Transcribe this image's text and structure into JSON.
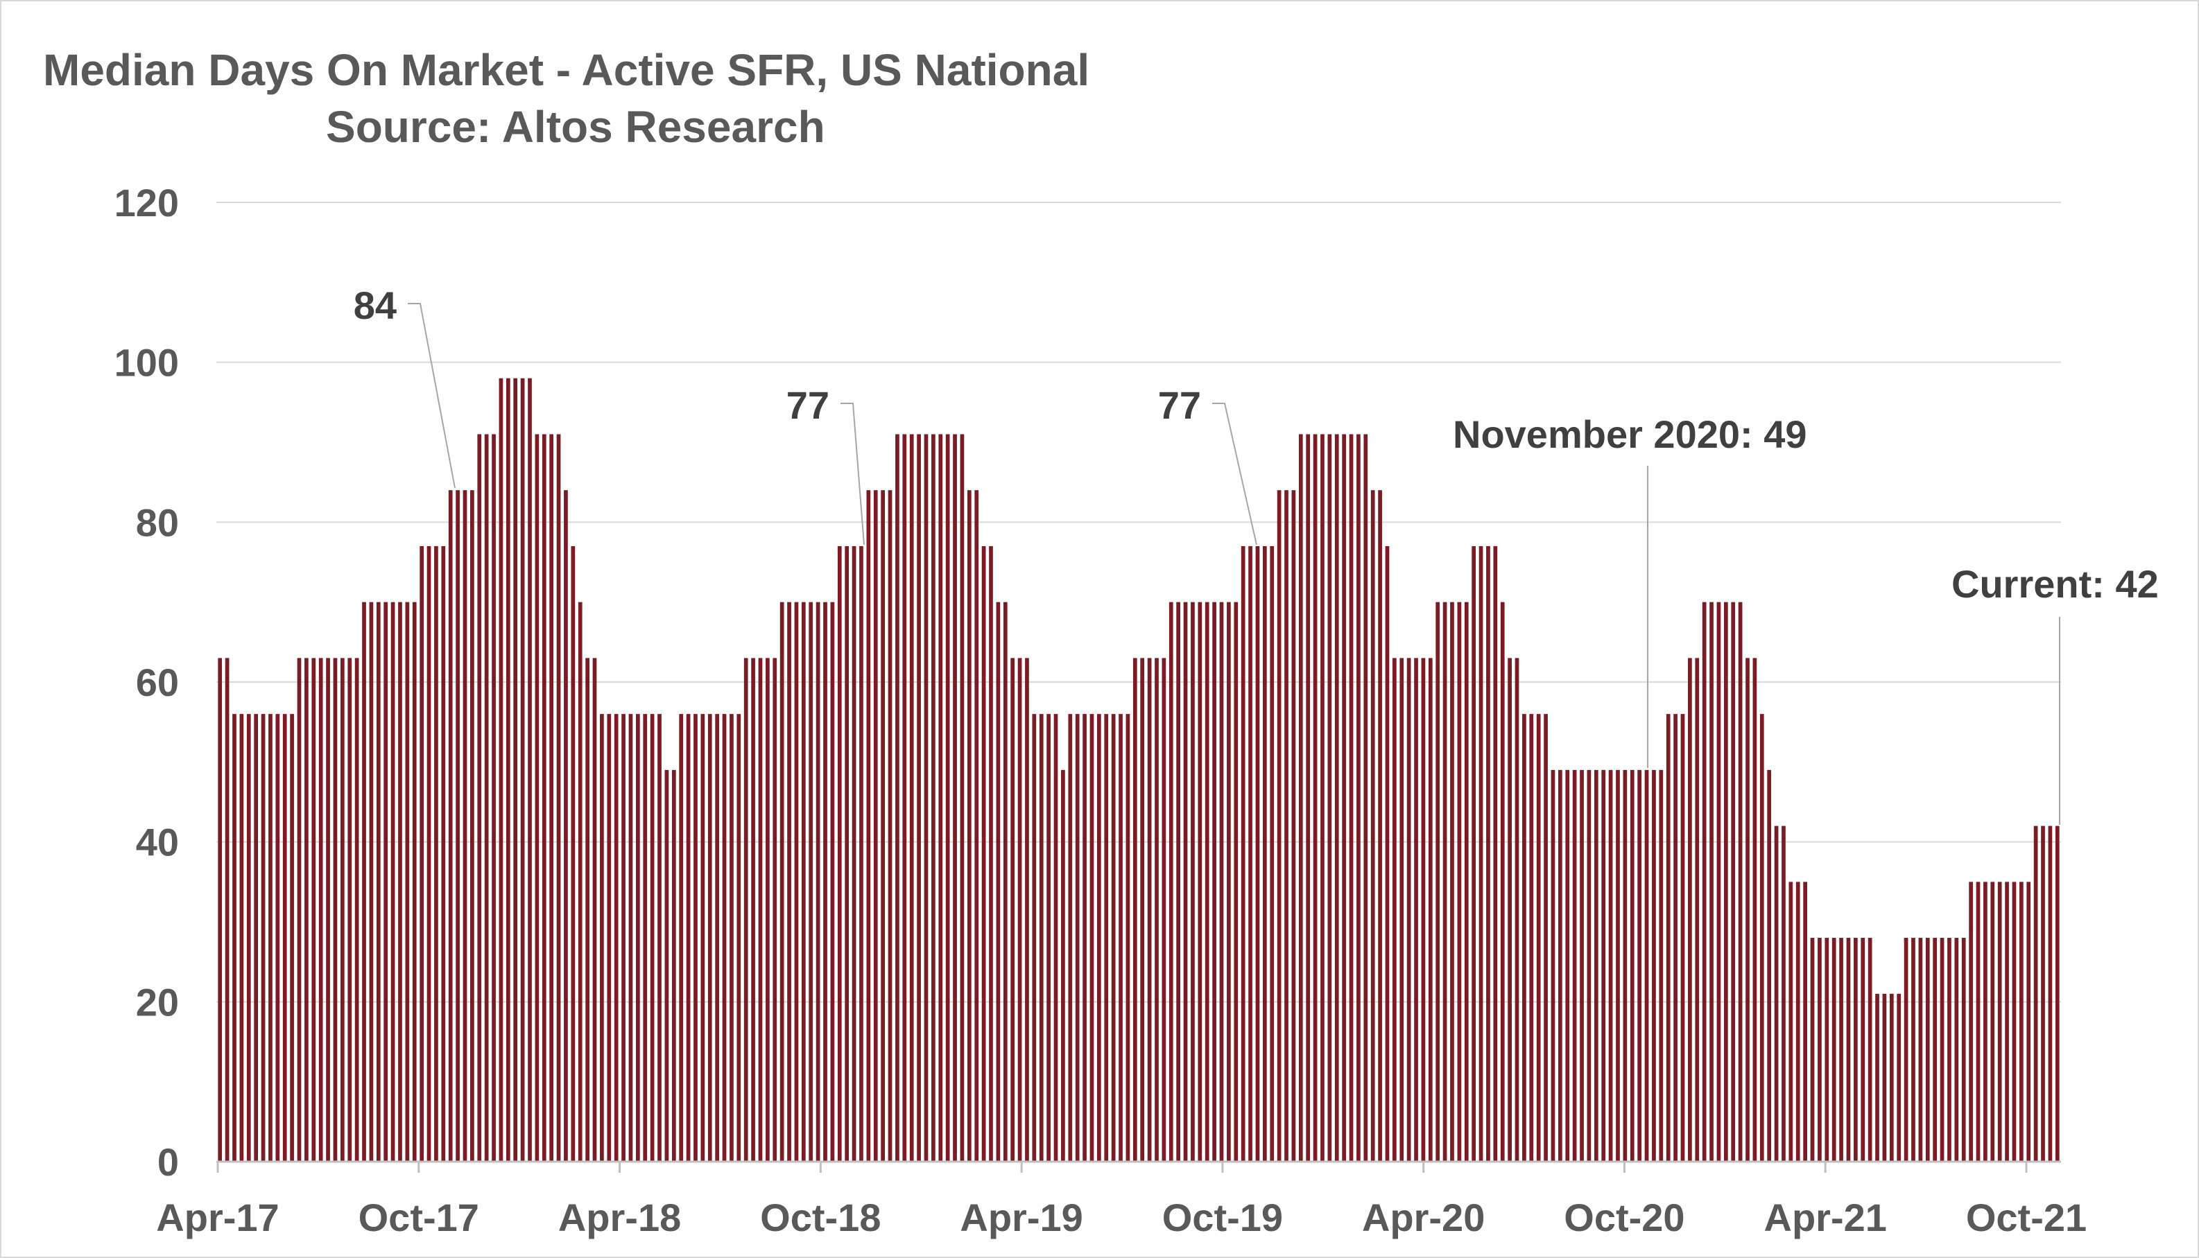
{
  "chart_data": {
    "type": "bar",
    "title": "Median Days On Market - Active SFR, US National",
    "subtitle": "Source: Altos Research",
    "xlabel": "",
    "ylabel": "",
    "ylim": [
      0,
      120
    ],
    "yticks": [
      0,
      20,
      40,
      60,
      80,
      100,
      120
    ],
    "grid": true,
    "legend": "none",
    "bar_color": "#7b1c24",
    "x_tick_labels": [
      "Apr-17",
      "Oct-17",
      "Apr-18",
      "Oct-18",
      "Apr-19",
      "Oct-19",
      "Apr-20",
      "Oct-20",
      "Apr-21",
      "Oct-21"
    ],
    "monthly_values": [
      {
        "month": "Apr-17",
        "value": 63,
        "weeks": 2
      },
      {
        "month": "May-17",
        "value": 56,
        "weeks": 5
      },
      {
        "month": "Jun-17",
        "value": 56,
        "weeks": 4
      },
      {
        "month": "Jul-17",
        "value": 63,
        "weeks": 4
      },
      {
        "month": "Aug-17",
        "value": 63,
        "weeks": 5
      },
      {
        "month": "Sep-17",
        "value": 70,
        "weeks": 4
      },
      {
        "month": "Oct-17",
        "value": 70,
        "weeks": 4
      },
      {
        "month": "Nov-17",
        "value": 77,
        "weeks": 4
      },
      {
        "month": "Dec-17",
        "value": 84,
        "weeks": 4
      },
      {
        "month": "Jan-18",
        "value": 91,
        "weeks": 3
      },
      {
        "month": "Feb-18",
        "value": 98,
        "weeks": 5
      },
      {
        "month": "Mar-18",
        "value": 91,
        "weeks": 4
      },
      {
        "month": "Apr-18",
        "value": 84,
        "weeks": 1
      },
      {
        "month": "Apr-18b",
        "value": 77,
        "weeks": 1
      },
      {
        "month": "Apr-18c",
        "value": 70,
        "weeks": 1
      },
      {
        "month": "May-18",
        "value": 63,
        "weeks": 2
      },
      {
        "month": "May-18b",
        "value": 56,
        "weeks": 9
      },
      {
        "month": "Jul-18",
        "value": 49,
        "weeks": 2
      },
      {
        "month": "Aug-18",
        "value": 56,
        "weeks": 9
      },
      {
        "month": "Sep-18",
        "value": 63,
        "weeks": 5
      },
      {
        "month": "Oct-18",
        "value": 70,
        "weeks": 8
      },
      {
        "month": "Nov-18",
        "value": 77,
        "weeks": 4
      },
      {
        "month": "Dec-18",
        "value": 84,
        "weeks": 4
      },
      {
        "month": "Jan-19",
        "value": 91,
        "weeks": 10
      },
      {
        "month": "Mar-19",
        "value": 84,
        "weeks": 2
      },
      {
        "month": "Mar-19b",
        "value": 77,
        "weeks": 2
      },
      {
        "month": "Apr-19",
        "value": 70,
        "weeks": 2
      },
      {
        "month": "Apr-19b",
        "value": 63,
        "weeks": 3
      },
      {
        "month": "May-19",
        "value": 56,
        "weeks": 4
      },
      {
        "month": "Jun-19",
        "value": 49,
        "weeks": 1
      },
      {
        "month": "Jun-19b",
        "value": 56,
        "weeks": 9
      },
      {
        "month": "Aug-19",
        "value": 63,
        "weeks": 5
      },
      {
        "month": "Sep-19",
        "value": 70,
        "weeks": 10
      },
      {
        "month": "Nov-19",
        "value": 77,
        "weeks": 5
      },
      {
        "month": "Dec-19",
        "value": 84,
        "weeks": 3
      },
      {
        "month": "Jan-20",
        "value": 91,
        "weeks": 10
      },
      {
        "month": "Mar-20",
        "value": 84,
        "weeks": 2
      },
      {
        "month": "Mar-20b",
        "value": 77,
        "weeks": 1
      },
      {
        "month": "Apr-20",
        "value": 63,
        "weeks": 6
      },
      {
        "month": "May-20",
        "value": 70,
        "weeks": 5
      },
      {
        "month": "Jun-20",
        "value": 77,
        "weeks": 4
      },
      {
        "month": "Jun-20b",
        "value": 70,
        "weeks": 1
      },
      {
        "month": "Jul-20",
        "value": 63,
        "weeks": 2
      },
      {
        "month": "Jul-20b",
        "value": 56,
        "weeks": 4
      },
      {
        "month": "Aug-20",
        "value": 49,
        "weeks": 16
      },
      {
        "month": "Nov-20",
        "value": 56,
        "weeks": 3
      },
      {
        "month": "Dec-20",
        "value": 63,
        "weeks": 2
      },
      {
        "month": "Dec-20b",
        "value": 70,
        "weeks": 6
      },
      {
        "month": "Feb-21",
        "value": 63,
        "weeks": 2
      },
      {
        "month": "Feb-21b",
        "value": 56,
        "weeks": 1
      },
      {
        "month": "Mar-21",
        "value": 49,
        "weeks": 1
      },
      {
        "month": "Mar-21b",
        "value": 42,
        "weeks": 2
      },
      {
        "month": "Mar-21c",
        "value": 35,
        "weeks": 3
      },
      {
        "month": "Apr-21",
        "value": 28,
        "weeks": 9
      },
      {
        "month": "Jun-21",
        "value": 21,
        "weeks": 4
      },
      {
        "month": "Jul-21",
        "value": 28,
        "weeks": 9
      },
      {
        "month": "Sep-21",
        "value": 35,
        "weeks": 9
      },
      {
        "month": "Oct-21",
        "value": 42,
        "weeks": 4
      }
    ],
    "annotations": [
      {
        "text": "84",
        "value": 84
      },
      {
        "text": "77",
        "value": 77
      },
      {
        "text": "77",
        "value": 77
      },
      {
        "text": "November 2020: 49",
        "value": 49
      },
      {
        "text": "Current: 42",
        "value": 42
      }
    ]
  }
}
